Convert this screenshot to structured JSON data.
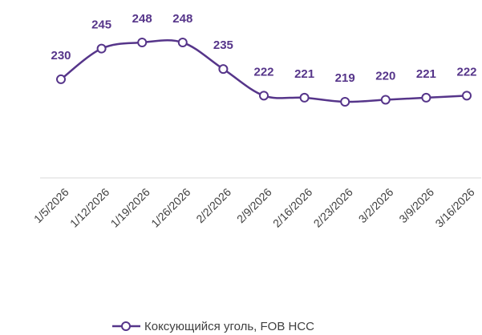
{
  "chart_data": {
    "type": "line",
    "categories": [
      "1/5/2026",
      "1/12/2026",
      "1/19/2026",
      "1/26/2026",
      "2/2/2026",
      "2/9/2026",
      "2/16/2026",
      "2/23/2026",
      "3/2/2026",
      "3/9/2026",
      "3/16/2026"
    ],
    "series": [
      {
        "name": "Коксующийся уголь, FOB HCC",
        "color": "#56358a",
        "values": [
          230,
          245,
          248,
          248,
          235,
          222,
          221,
          219,
          220,
          221,
          222
        ]
      }
    ],
    "legend": "bottom"
  }
}
